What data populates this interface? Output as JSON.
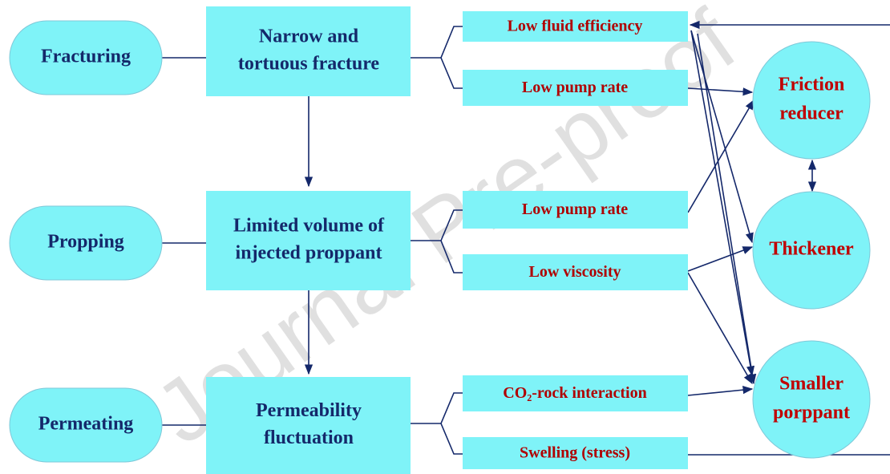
{
  "stages": [
    "Fracturing",
    "Propping",
    "Permeating"
  ],
  "problems": [
    [
      "Narrow and",
      "tortuous fracture"
    ],
    [
      "Limited volume of",
      "injected proppant"
    ],
    [
      "Permeability",
      "fluctuation"
    ]
  ],
  "causes": [
    "Low fluid efficiency",
    "Low pump rate",
    "Low pump rate",
    "Low viscosity",
    "CO₂-rock interaction",
    "Swelling (stress)"
  ],
  "solutions": [
    [
      "Friction",
      "reducer"
    ],
    [
      "Thickener"
    ],
    [
      "Smaller",
      "porppant"
    ]
  ],
  "watermark": "Journal Pre-proof"
}
